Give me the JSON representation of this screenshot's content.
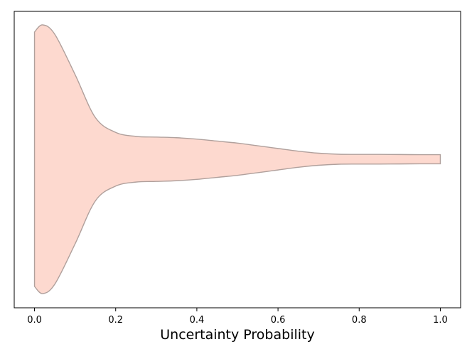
{
  "chart_data": {
    "type": "violin",
    "orientation": "horizontal",
    "title": "",
    "xlabel": "Uncertainty Probability",
    "ylabel": "",
    "xlim": [
      -0.05,
      1.05
    ],
    "x_ticks": [
      0.0,
      0.2,
      0.4,
      0.6,
      0.8,
      1.0
    ],
    "x_tick_labels": [
      "0.0",
      "0.2",
      "0.4",
      "0.6",
      "0.8",
      "1.0"
    ],
    "grid": false,
    "legend": "none",
    "fill_color": "#fdd9cf",
    "edge_color": "#b0a09c",
    "density_profile": {
      "x": [
        0.0,
        0.02,
        0.05,
        0.1,
        0.15,
        0.2,
        0.25,
        0.3,
        0.35,
        0.4,
        0.45,
        0.5,
        0.55,
        0.6,
        0.65,
        0.7,
        0.75,
        0.8,
        0.85,
        0.9,
        0.95,
        1.0
      ],
      "relative_half_width": [
        0.947,
        1.0,
        0.93,
        0.63,
        0.31,
        0.2,
        0.17,
        0.165,
        0.16,
        0.15,
        0.135,
        0.12,
        0.1,
        0.08,
        0.06,
        0.045,
        0.037,
        0.036,
        0.036,
        0.035,
        0.034,
        0.034
      ]
    }
  }
}
